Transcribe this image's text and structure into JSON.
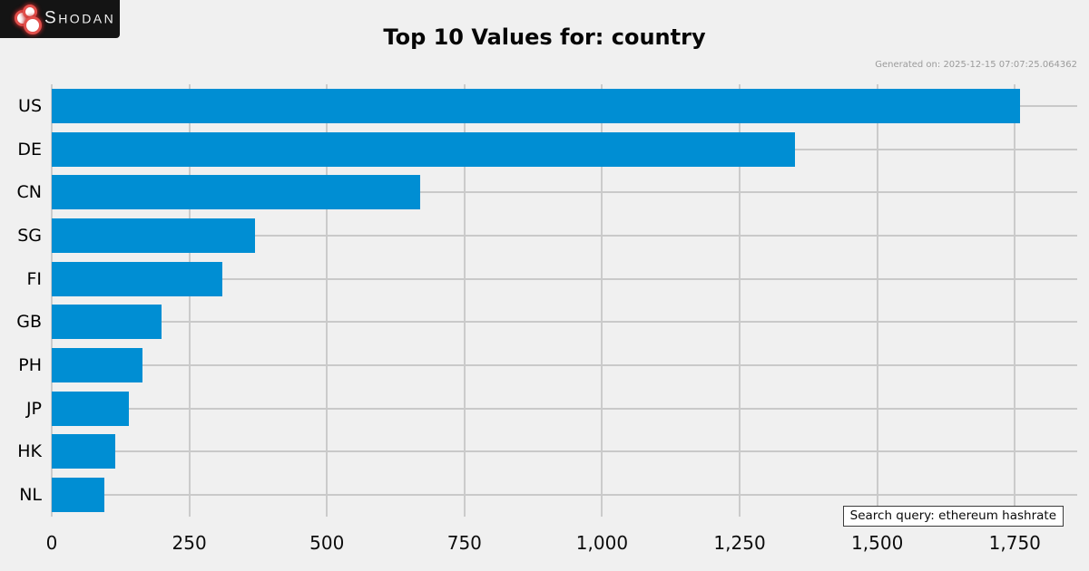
{
  "logo": {
    "letter": "S",
    "rest": "HODAN"
  },
  "title": "Top 10 Values for: country",
  "generated_on": "Generated on: 2025-12-15 07:07:25.064362",
  "search_query": "Search query: ethereum hashrate",
  "chart_data": {
    "type": "bar",
    "orientation": "horizontal",
    "title": "Top 10 Values for: country",
    "categories": [
      "US",
      "DE",
      "CN",
      "SG",
      "FI",
      "GB",
      "PH",
      "JP",
      "HK",
      "NL"
    ],
    "values": [
      1760,
      1350,
      670,
      370,
      310,
      200,
      165,
      140,
      115,
      95
    ],
    "x_ticks": [
      0,
      250,
      500,
      750,
      1000,
      1250,
      1500,
      1750
    ],
    "x_tick_labels": [
      "0",
      "250",
      "500",
      "750",
      "1,000",
      "1,250",
      "1,500",
      "1,750"
    ],
    "xlim": [
      0,
      1860
    ],
    "grid": true,
    "legend": "none",
    "bar_color": "#008ed3",
    "background_color": "#f0f0f0",
    "gridline_color": "#cbcbcb"
  }
}
